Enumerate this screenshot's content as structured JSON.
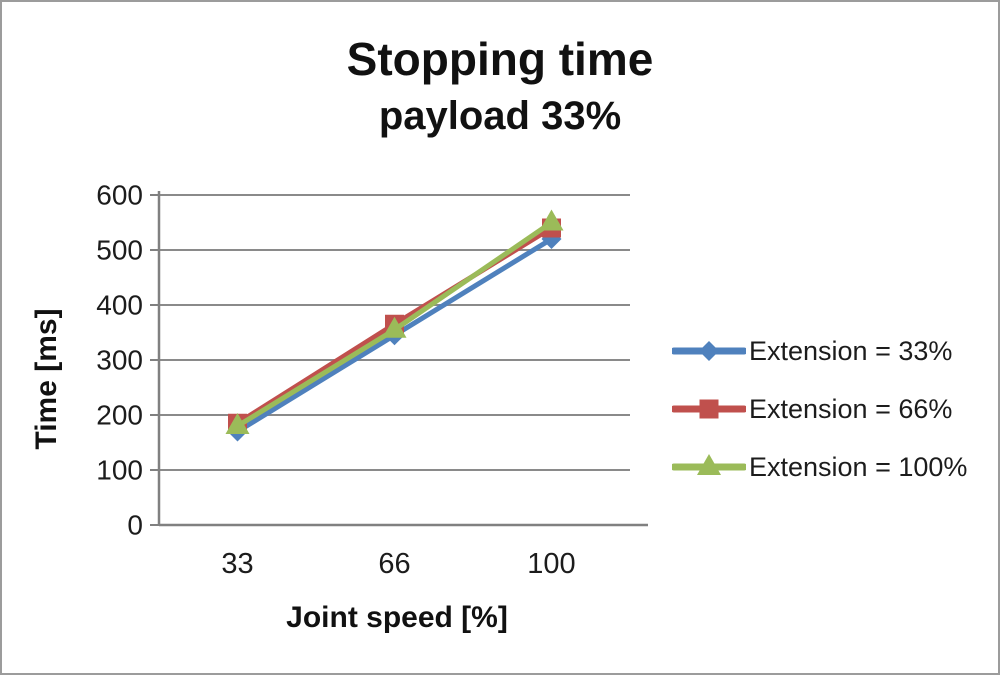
{
  "title": "Stopping time",
  "subtitle": "payload 33%",
  "chart_data": {
    "type": "line",
    "categories": [
      "33",
      "66",
      "100"
    ],
    "xlabel": "Joint speed [%]",
    "ylabel": "Time [ms]",
    "ylim": [
      0,
      600
    ],
    "yticks": [
      0,
      100,
      200,
      300,
      400,
      500,
      600
    ],
    "grid": true,
    "legend_position": "right",
    "series": [
      {
        "name": "Extension = 33%",
        "marker": "diamond",
        "color": "#4F81BD",
        "values": [
          170,
          345,
          520
        ]
      },
      {
        "name": "Extension = 66%",
        "marker": "square",
        "color": "#C0504D",
        "values": [
          185,
          365,
          540
        ]
      },
      {
        "name": "Extension = 100%",
        "marker": "triangle-up",
        "color": "#9BBB59",
        "values": [
          180,
          355,
          550
        ]
      }
    ],
    "axis_color": "#808080",
    "grid_color": "#8a8a8a",
    "tick_label_color": "#1c1c1c"
  }
}
